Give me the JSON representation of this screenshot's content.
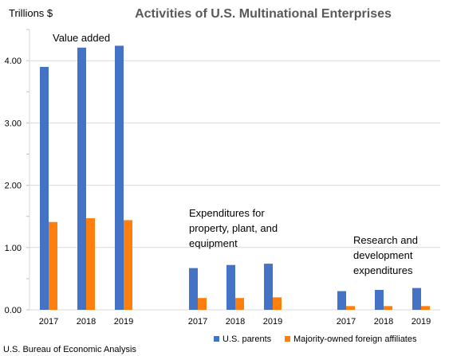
{
  "chart_data": {
    "type": "bar",
    "title": "Activities of U.S. Multinational Enterprises",
    "ylabel": "Trillions $",
    "source": "U.S. Bureau of Economic Analysis",
    "ylim": [
      0,
      4.5
    ],
    "yticks": [
      "0.00",
      "1.00",
      "2.00",
      "3.00",
      "4.00"
    ],
    "grid": true,
    "legend_position": "bottom-right",
    "colors": {
      "parents": "#4472C4",
      "affiliates": "#FF7F0E"
    },
    "groups": [
      {
        "label": "Value added",
        "categories": [
          "2017",
          "2018",
          "2019"
        ],
        "series": [
          {
            "name": "U.S. parents",
            "values": [
              3.9,
              4.21,
              4.24
            ]
          },
          {
            "name": "Majority-owned foreign affiliates",
            "values": [
              1.41,
              1.47,
              1.44
            ]
          }
        ]
      },
      {
        "label": "Expenditures for property, plant, and equipment",
        "label_lines": [
          "Expenditures for",
          "property, plant, and",
          "equipment"
        ],
        "categories": [
          "2017",
          "2018",
          "2019"
        ],
        "series": [
          {
            "name": "U.S. parents",
            "values": [
              0.67,
              0.72,
              0.74
            ]
          },
          {
            "name": "Majority-owned foreign affiliates",
            "values": [
              0.19,
              0.19,
              0.2
            ]
          }
        ]
      },
      {
        "label": "Research and development expenditures",
        "label_lines": [
          "Research and",
          "development",
          "expenditures"
        ],
        "categories": [
          "2017",
          "2018",
          "2019"
        ],
        "series": [
          {
            "name": "U.S. parents",
            "values": [
              0.3,
              0.32,
              0.35
            ]
          },
          {
            "name": "Majority-owned foreign affiliates",
            "values": [
              0.06,
              0.06,
              0.06
            ]
          }
        ]
      }
    ],
    "legend": [
      "U.S. parents",
      "Majority-owned foreign affiliates"
    ]
  }
}
